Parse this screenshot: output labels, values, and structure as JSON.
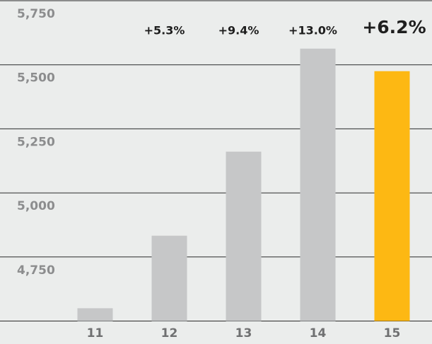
{
  "chart_data": {
    "type": "bar",
    "categories": [
      "11",
      "12",
      "13",
      "14",
      "15"
    ],
    "values": [
      4550,
      4833,
      5161,
      5563,
      5475
    ],
    "colors": [
      "#c6c7c8",
      "#c6c7c8",
      "#c6c7c8",
      "#c6c7c8",
      "#fdb813"
    ],
    "growth_labels": [
      "+5.3%",
      "+9.4%",
      "+13.0%",
      "+6.2%"
    ],
    "ylim": [
      4500,
      5750
    ],
    "yticks": [
      {
        "value": 4750,
        "label": "4,750"
      },
      {
        "value": 5000,
        "label": "5,000"
      },
      {
        "value": 5250,
        "label": "5,250"
      },
      {
        "value": 5500,
        "label": "5,500"
      },
      {
        "value": 5750,
        "label": "5,750"
      }
    ],
    "grid": true
  }
}
